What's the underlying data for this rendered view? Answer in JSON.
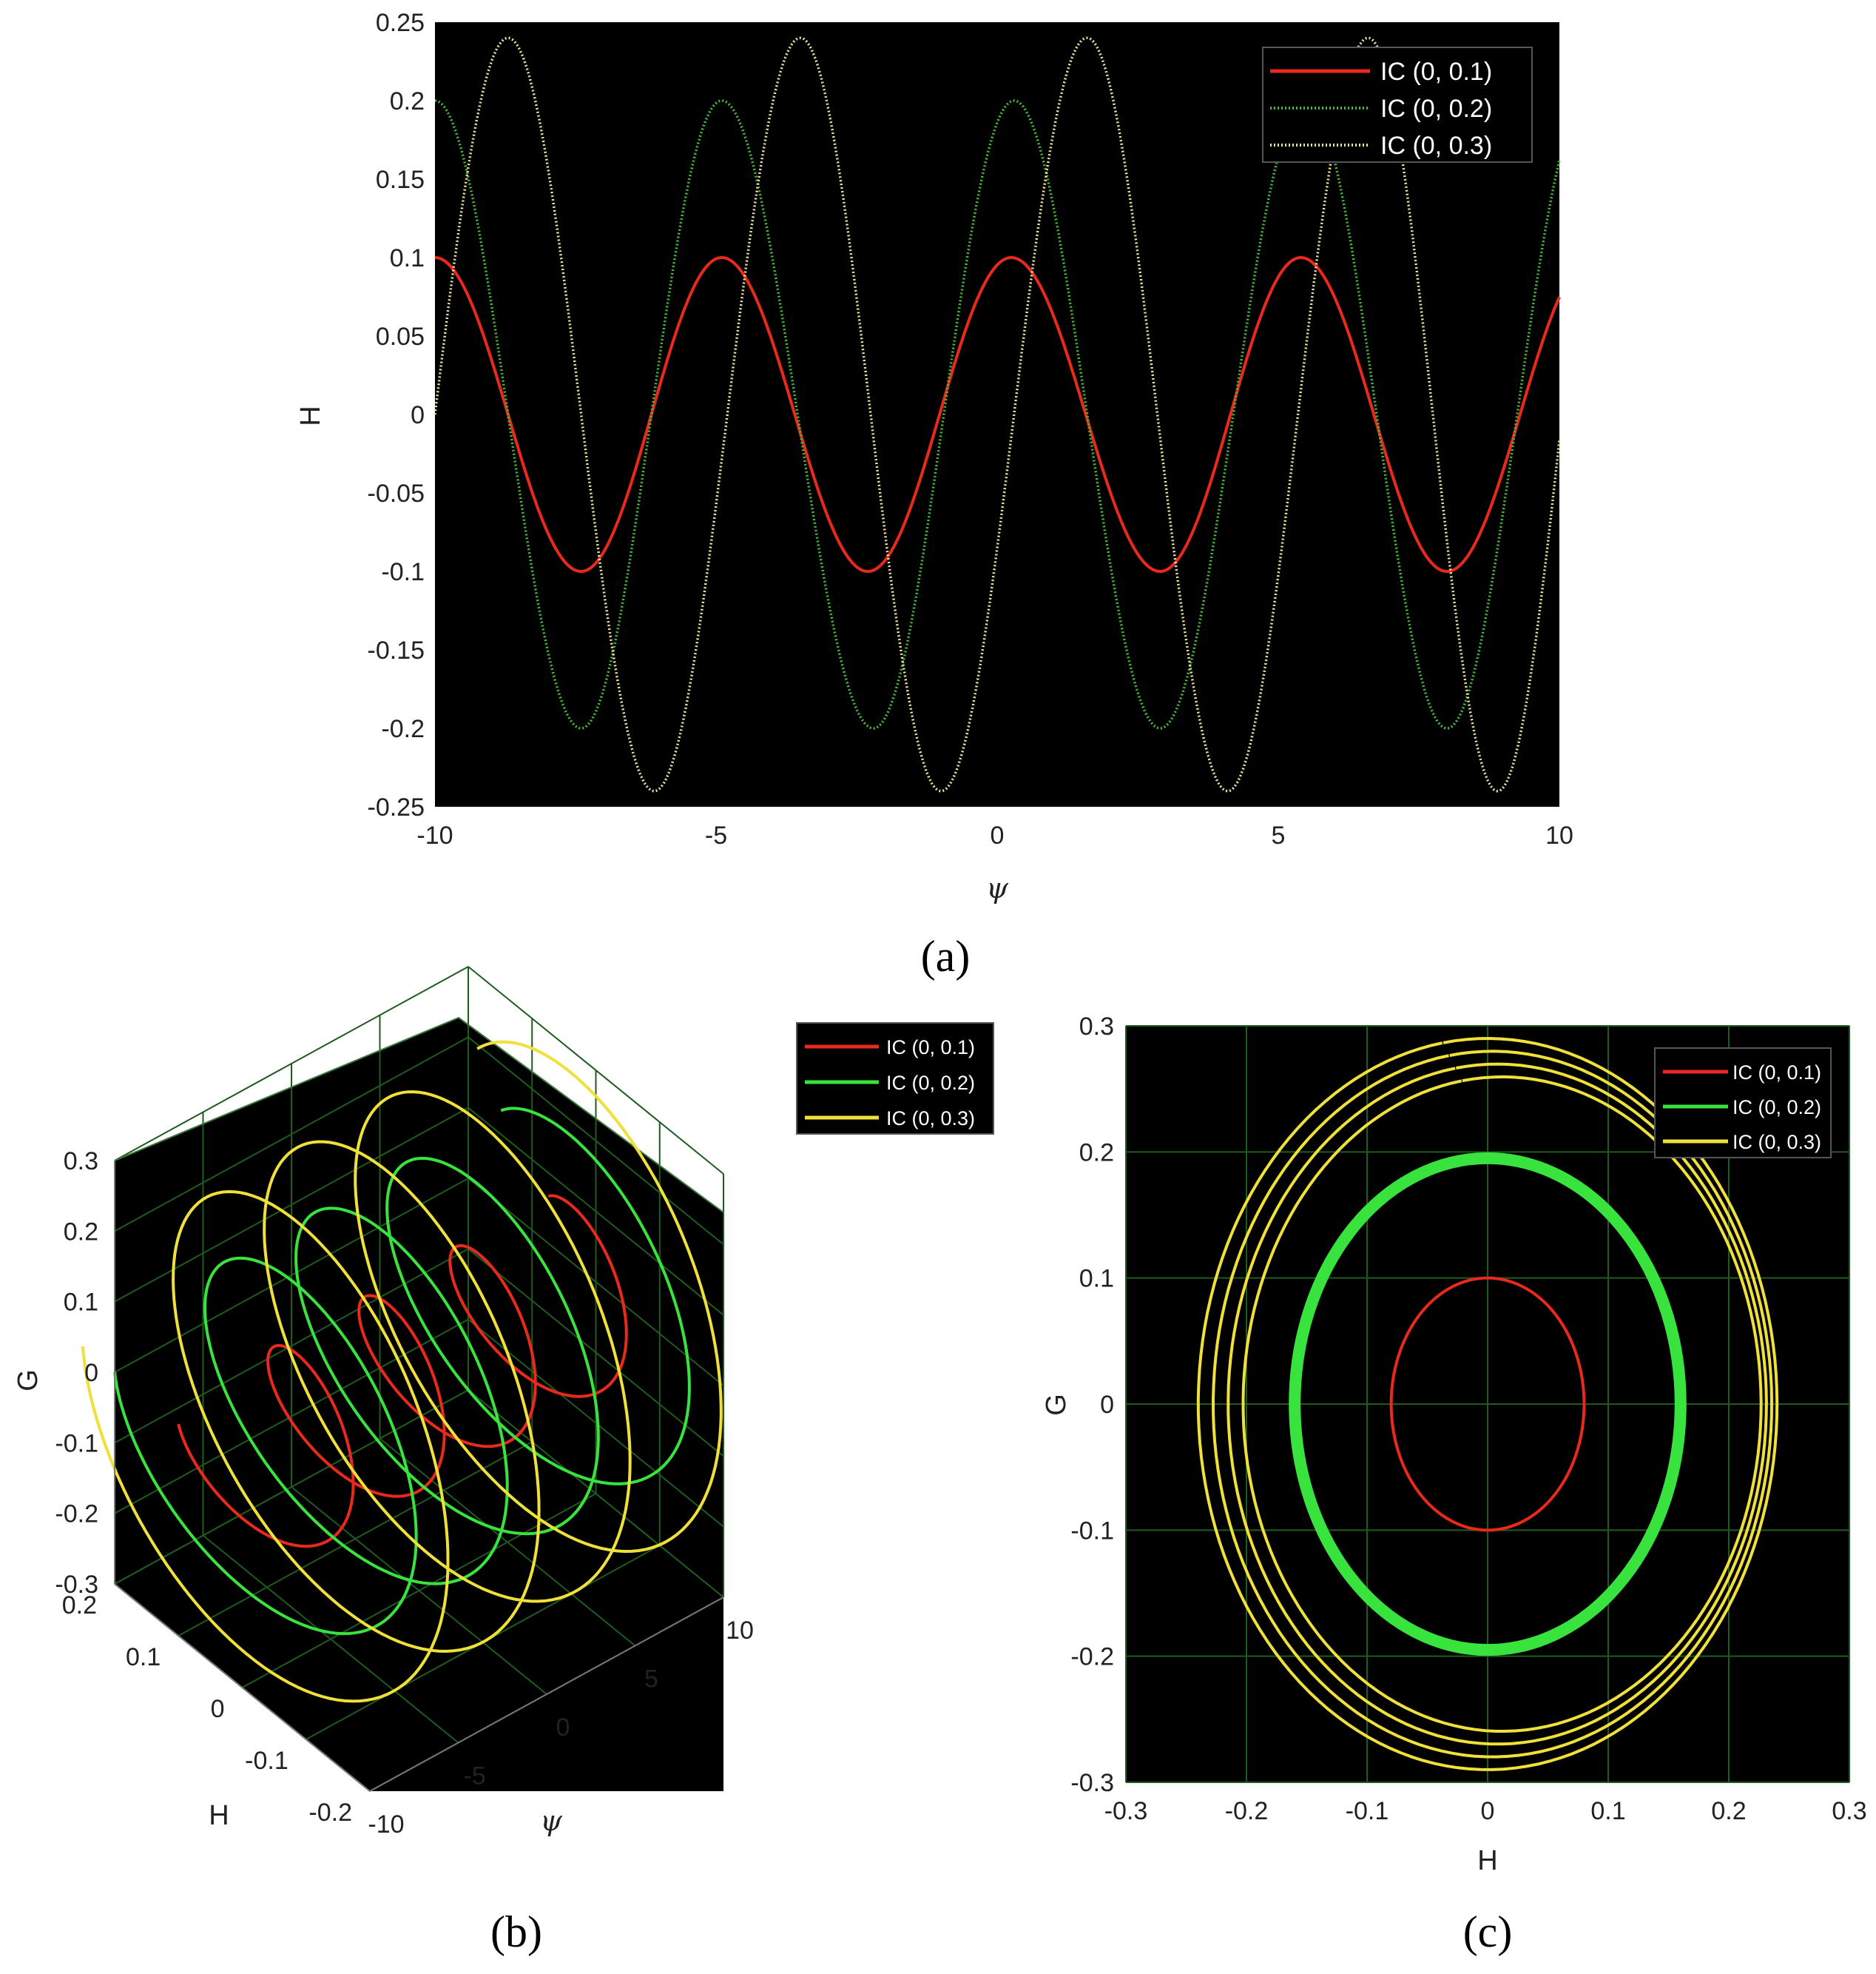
{
  "colors": {
    "plot_bg": "#000000",
    "grid": "#1f5a1f",
    "red": "#e8291c",
    "green": "#39e33d",
    "yellow": "#f0e03a",
    "a_green": "#49b83c",
    "a_yellow": "#e9e2a0"
  },
  "panel_labels": {
    "a": "(a)",
    "b": "(b)",
    "c": "(c)"
  },
  "chart_data": [
    {
      "id": "a",
      "type": "line",
      "xlabel": "ψ",
      "ylabel": "H",
      "xlim": [
        -10,
        10
      ],
      "ylim": [
        -0.25,
        0.25
      ],
      "xticks": [
        -10,
        -5,
        0,
        5,
        10
      ],
      "yticks": [
        0.25,
        0.2,
        0.15,
        0.1,
        0.05,
        0,
        -0.05,
        -0.1,
        -0.15,
        -0.2,
        -0.25
      ],
      "xtick_labels": [
        "-10",
        "-5",
        "0",
        "5",
        "10"
      ],
      "ytick_labels": [
        "0.25",
        "0.2",
        "0.15",
        "0.1",
        "0.05",
        "0",
        "-0.05",
        "-0.1",
        "-0.15",
        "-0.2",
        "-0.25"
      ],
      "grid": false,
      "legend_position": "top-right",
      "series": [
        {
          "name": "IC (0, 0.1)",
          "color_key": "red",
          "style": "solid",
          "amplitude": 0.1,
          "peaks_at_psi": [
            -10,
            -4.9,
            0.25,
            5.4
          ],
          "troughs_at_psi": [
            -7.4,
            -2.3,
            2.9,
            8.0
          ]
        },
        {
          "name": "IC (0, 0.2)",
          "color_key": "a_green",
          "style": "dotted",
          "amplitude": 0.2,
          "peaks_at_psi": [
            -10,
            -4.9,
            0.3,
            5.5
          ],
          "troughs_at_psi": [
            -7.4,
            -2.2,
            2.9,
            8.0
          ]
        },
        {
          "name": "IC (0, 0.3)",
          "color_key": "a_yellow",
          "style": "dotted",
          "amplitude": 0.24,
          "peaks_at_psi": [
            -8.7,
            -3.5,
            1.6,
            6.6
          ],
          "troughs_at_psi": [
            -6.1,
            -1.0,
            4.1,
            8.9
          ]
        }
      ]
    },
    {
      "id": "b",
      "type": "line3d",
      "xlabel": "ψ",
      "ylabel": "H",
      "zlabel": "G",
      "psi_range": [
        -10,
        10
      ],
      "h_range": [
        -0.2,
        0.2
      ],
      "g_range": [
        -0.3,
        0.3
      ],
      "g_ticks": [
        "0.3",
        "0.2",
        "0.1",
        "0",
        "-0.1",
        "-0.2",
        "-0.3"
      ],
      "h_ticks": [
        "0.2",
        "0.1",
        "0",
        "-0.1",
        "-0.2"
      ],
      "psi_ticks": [
        "-10",
        "-5",
        "0",
        "5",
        "10"
      ],
      "grid": true,
      "legend_position": "outside top-right",
      "series": [
        {
          "name": "IC (0, 0.1)",
          "color_key": "red",
          "amplitude_h": 0.1,
          "amplitude_g": 0.1
        },
        {
          "name": "IC (0, 0.2)",
          "color_key": "green",
          "amplitude_h": 0.2,
          "amplitude_g": 0.2
        },
        {
          "name": "IC (0, 0.3)",
          "color_key": "yellow",
          "amplitude_h": 0.25,
          "amplitude_g": 0.29
        }
      ]
    },
    {
      "id": "c",
      "type": "line",
      "subtype": "phase-portrait",
      "xlabel": "H",
      "ylabel": "G",
      "xlim": [
        -0.3,
        0.3
      ],
      "ylim": [
        -0.3,
        0.3
      ],
      "xtick_labels": [
        "-0.3",
        "-0.2",
        "-0.1",
        "0",
        "0.1",
        "0.2",
        "0.3"
      ],
      "ytick_labels": [
        "0.3",
        "0.2",
        "0.1",
        "0",
        "-0.1",
        "-0.2",
        "-0.3"
      ],
      "grid": true,
      "legend_position": "top-right",
      "series": [
        {
          "name": "IC (0, 0.1)",
          "color_key": "red",
          "h_half_width": 0.08,
          "g_half_height": 0.1
        },
        {
          "name": "IC (0, 0.2)",
          "color_key": "green",
          "h_half_width": 0.16,
          "g_half_height": 0.195
        },
        {
          "name": "IC (0, 0.3)",
          "color_key": "yellow",
          "h_half_width": 0.24,
          "g_half_height": 0.29
        }
      ]
    }
  ]
}
